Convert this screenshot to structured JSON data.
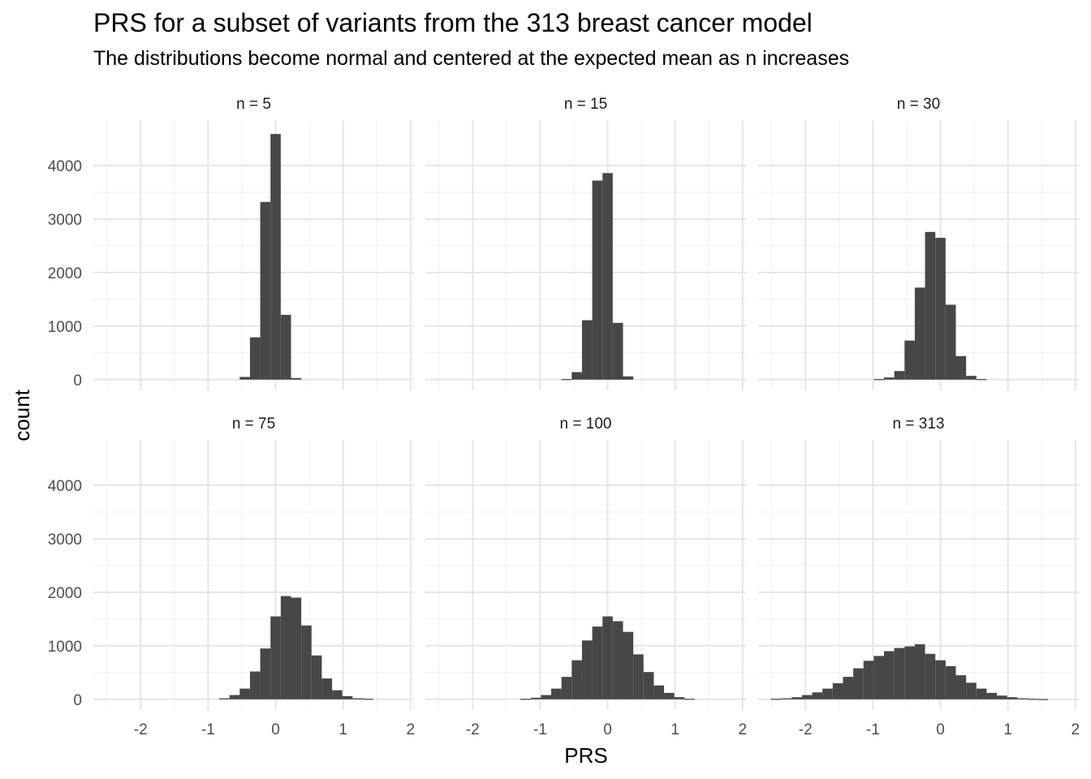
{
  "chart_data": {
    "type": "bar",
    "title": "PRS for a subset of variants from the 313 breast cancer model",
    "subtitle": "The distributions become normal and centered at the expected mean as n increases",
    "xlabel": "PRS",
    "ylabel": "count",
    "xlim": [
      -2.7,
      2.05
    ],
    "ylim": [
      -200,
      4850
    ],
    "x_ticks": [
      -2,
      -1,
      0,
      1,
      2
    ],
    "x_tick_labels": [
      "-2",
      "-1",
      "0",
      "1",
      "2"
    ],
    "y_ticks": [
      0,
      1000,
      2000,
      3000,
      4000
    ],
    "y_tick_labels": [
      "0",
      "1000",
      "2000",
      "3000",
      "4000"
    ],
    "grid": true,
    "bar_color": "#474747",
    "panels": [
      {
        "label": "n = 5",
        "bin_width": 0.152,
        "bins": [
          {
            "x": -0.456,
            "count": 50
          },
          {
            "x": -0.304,
            "count": 790
          },
          {
            "x": -0.152,
            "count": 3320
          },
          {
            "x": 0.0,
            "count": 4590
          },
          {
            "x": 0.152,
            "count": 1210
          },
          {
            "x": 0.304,
            "count": 30
          }
        ]
      },
      {
        "label": "n = 15",
        "bin_width": 0.152,
        "bins": [
          {
            "x": -0.608,
            "count": 10
          },
          {
            "x": -0.456,
            "count": 140
          },
          {
            "x": -0.304,
            "count": 1110
          },
          {
            "x": -0.152,
            "count": 3720
          },
          {
            "x": 0.0,
            "count": 3860
          },
          {
            "x": 0.152,
            "count": 1060
          },
          {
            "x": 0.304,
            "count": 60
          }
        ]
      },
      {
        "label": "n = 30",
        "bin_width": 0.152,
        "bins": [
          {
            "x": -0.912,
            "count": 10
          },
          {
            "x": -0.76,
            "count": 40
          },
          {
            "x": -0.608,
            "count": 160
          },
          {
            "x": -0.456,
            "count": 730
          },
          {
            "x": -0.304,
            "count": 1720
          },
          {
            "x": -0.152,
            "count": 2760
          },
          {
            "x": 0.0,
            "count": 2650
          },
          {
            "x": 0.152,
            "count": 1400
          },
          {
            "x": 0.304,
            "count": 440
          },
          {
            "x": 0.456,
            "count": 70
          },
          {
            "x": 0.608,
            "count": 10
          }
        ]
      },
      {
        "label": "n = 75",
        "bin_width": 0.152,
        "bins": [
          {
            "x": -0.76,
            "count": 20
          },
          {
            "x": -0.608,
            "count": 80
          },
          {
            "x": -0.456,
            "count": 200
          },
          {
            "x": -0.304,
            "count": 520
          },
          {
            "x": -0.152,
            "count": 950
          },
          {
            "x": 0.0,
            "count": 1550
          },
          {
            "x": 0.152,
            "count": 1930
          },
          {
            "x": 0.304,
            "count": 1900
          },
          {
            "x": 0.456,
            "count": 1380
          },
          {
            "x": 0.608,
            "count": 820
          },
          {
            "x": 0.76,
            "count": 390
          },
          {
            "x": 0.912,
            "count": 170
          },
          {
            "x": 1.064,
            "count": 60
          },
          {
            "x": 1.216,
            "count": 20
          },
          {
            "x": 1.368,
            "count": 10
          }
        ]
      },
      {
        "label": "n = 100",
        "bin_width": 0.152,
        "bins": [
          {
            "x": -1.216,
            "count": 10
          },
          {
            "x": -1.064,
            "count": 30
          },
          {
            "x": -0.912,
            "count": 80
          },
          {
            "x": -0.76,
            "count": 200
          },
          {
            "x": -0.608,
            "count": 420
          },
          {
            "x": -0.456,
            "count": 730
          },
          {
            "x": -0.304,
            "count": 1100
          },
          {
            "x": -0.152,
            "count": 1360
          },
          {
            "x": 0.0,
            "count": 1550
          },
          {
            "x": 0.152,
            "count": 1460
          },
          {
            "x": 0.304,
            "count": 1260
          },
          {
            "x": 0.456,
            "count": 840
          },
          {
            "x": 0.608,
            "count": 510
          },
          {
            "x": 0.76,
            "count": 260
          },
          {
            "x": 0.912,
            "count": 120
          },
          {
            "x": 1.064,
            "count": 40
          },
          {
            "x": 1.216,
            "count": 10
          }
        ]
      },
      {
        "label": "n = 313",
        "bin_width": 0.152,
        "bins": [
          {
            "x": -2.432,
            "count": 10
          },
          {
            "x": -2.28,
            "count": 20
          },
          {
            "x": -2.128,
            "count": 40
          },
          {
            "x": -1.976,
            "count": 80
          },
          {
            "x": -1.824,
            "count": 130
          },
          {
            "x": -1.672,
            "count": 200
          },
          {
            "x": -1.52,
            "count": 300
          },
          {
            "x": -1.368,
            "count": 420
          },
          {
            "x": -1.216,
            "count": 580
          },
          {
            "x": -1.064,
            "count": 720
          },
          {
            "x": -0.912,
            "count": 810
          },
          {
            "x": -0.76,
            "count": 900
          },
          {
            "x": -0.608,
            "count": 960
          },
          {
            "x": -0.456,
            "count": 990
          },
          {
            "x": -0.304,
            "count": 1030
          },
          {
            "x": -0.152,
            "count": 850
          },
          {
            "x": 0.0,
            "count": 730
          },
          {
            "x": 0.152,
            "count": 620
          },
          {
            "x": 0.304,
            "count": 450
          },
          {
            "x": 0.456,
            "count": 310
          },
          {
            "x": 0.608,
            "count": 200
          },
          {
            "x": 0.76,
            "count": 120
          },
          {
            "x": 0.912,
            "count": 70
          },
          {
            "x": 1.064,
            "count": 40
          },
          {
            "x": 1.216,
            "count": 20
          },
          {
            "x": 1.368,
            "count": 10
          },
          {
            "x": 1.52,
            "count": 5
          }
        ]
      }
    ]
  }
}
